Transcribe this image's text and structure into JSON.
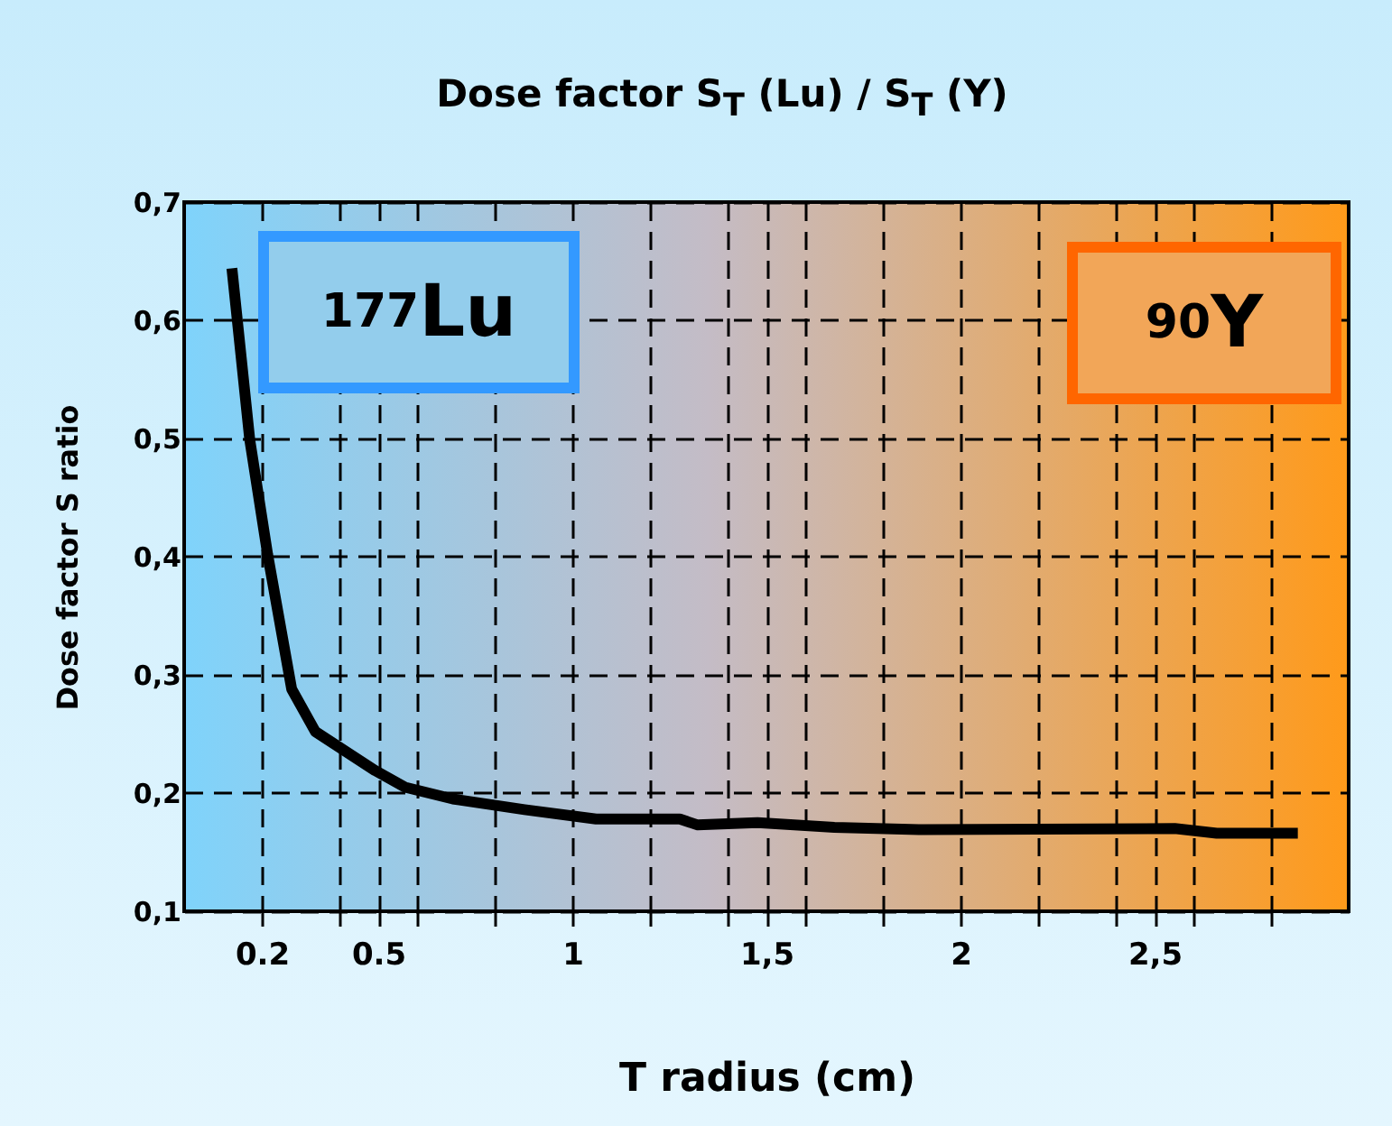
{
  "chart_data": {
    "type": "line",
    "title": "Dose factor S$_{T}$ (Lu) / S$_{T}$ (Y)",
    "xlabel": "T radius (cm)",
    "ylabel": "Dose factor   S ratio",
    "annotations": [
      "$^{177}$Lu",
      "$^{90}$Y"
    ],
    "x": [
      0.123,
      0.169,
      0.215,
      0.277,
      0.338,
      0.492,
      0.569,
      0.692,
      0.877,
      1.061,
      1.277,
      1.323,
      1.477,
      1.675,
      1.906,
      2.552,
      2.66,
      2.869
    ],
    "series": [
      {
        "color": "#000000",
        "values": [
          0.644,
          0.499,
          0.402,
          0.288,
          0.252,
          0.219,
          0.205,
          0.195,
          0.186,
          0.178,
          0.178,
          0.173,
          0.175,
          0.171,
          0.169,
          0.17,
          0.166,
          0.166
        ]
      }
    ],
    "xlim": [
      0,
      3
    ],
    "ylim": [
      0.1,
      0.7
    ],
    "xticks": [
      {
        "value": 0.2,
        "label": "0.2"
      },
      {
        "value": 0.4,
        "label": null
      },
      {
        "value": 0.5,
        "label": "0.5"
      },
      {
        "value": 0.6,
        "label": null
      },
      {
        "value": 0.8,
        "label": null
      },
      1,
      {
        "value": 1.2,
        "label": null
      },
      {
        "value": 1.4,
        "label": null
      },
      {
        "value": 1.5,
        "label": "1,5"
      },
      {
        "value": 1.6,
        "label": null
      },
      {
        "value": 1.8,
        "label": null
      },
      2,
      {
        "value": 2.2,
        "label": null
      },
      {
        "value": 2.4,
        "label": null
      },
      {
        "value": 2.5,
        "label": "2,5"
      },
      {
        "value": 2.6,
        "label": null
      },
      {
        "value": 2.8,
        "label": null
      }
    ],
    "yticks": [
      {
        "value": 0.1,
        "label": "0,1"
      },
      {
        "value": 0.2,
        "label": "0,2"
      },
      {
        "value": 0.3,
        "label": "0,3"
      },
      {
        "value": 0.4,
        "label": "0,4"
      },
      {
        "value": 0.5,
        "label": "0,5"
      },
      {
        "value": 0.6,
        "label": "0,6"
      },
      {
        "value": 0.7,
        "label": "0,7"
      }
    ],
    "grid": true,
    "marker": "none",
    "line_style": "solid"
  }
}
